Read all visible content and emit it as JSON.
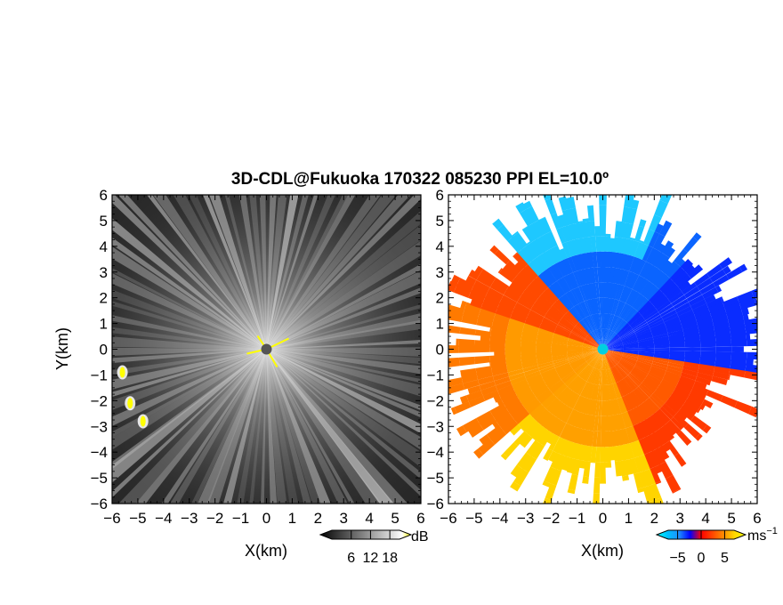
{
  "figure": {
    "title": "3D-CDL@Fukuoka 170322 085230 PPI EL=10.0º"
  },
  "chart_data": [
    {
      "type": "heatmap",
      "panel": "left",
      "variable": "intensity",
      "xlabel": "X(km)",
      "ylabel": "Y(km)",
      "xlim": [
        -6,
        6
      ],
      "ylim": [
        -6,
        6
      ],
      "x_ticks": [
        -6,
        -5,
        -4,
        -3,
        -2,
        -1,
        0,
        1,
        2,
        3,
        4,
        5,
        6
      ],
      "y_ticks": [
        -6,
        -5,
        -4,
        -3,
        -2,
        -1,
        0,
        1,
        2,
        3,
        4,
        5,
        6
      ],
      "x_tick_labels": [
        "−6",
        "−5",
        "−4",
        "−3",
        "−2",
        "−1",
        "0",
        "1",
        "2",
        "3",
        "4",
        "5",
        "6"
      ],
      "y_tick_labels": [
        "−6",
        "−5",
        "−4",
        "−3",
        "−2",
        "−1",
        "0",
        "1",
        "2",
        "3",
        "4",
        "5",
        "6"
      ],
      "colorbar": {
        "unit": "dB",
        "ticks": [
          6,
          12,
          18
        ],
        "tick_labels": [
          "6",
          "12",
          "18"
        ],
        "colors": [
          "#000000",
          "#1f1f1f",
          "#3a3a3a",
          "#555555",
          "#707070",
          "#8c8c8c",
          "#a8a8a8",
          "#c4c4c4",
          "#e0e0e0",
          "#ffffff",
          "#ffff00"
        ]
      },
      "features": [
        {
          "label": "radar site",
          "x": 0,
          "y": 0
        },
        {
          "label": "strong echo",
          "x": -5.6,
          "y": -0.9
        },
        {
          "label": "strong echo",
          "x": -5.3,
          "y": -2.1
        },
        {
          "label": "strong echo",
          "x": -4.8,
          "y": -2.8
        }
      ]
    },
    {
      "type": "heatmap",
      "panel": "right",
      "variable": "radial velocity",
      "xlabel": "X(km)",
      "xlim": [
        -6,
        6
      ],
      "ylim": [
        -6,
        6
      ],
      "x_ticks": [
        -6,
        -5,
        -4,
        -3,
        -2,
        -1,
        0,
        1,
        2,
        3,
        4,
        5,
        6
      ],
      "y_ticks": [
        -6,
        -5,
        -4,
        -3,
        -2,
        -1,
        0,
        1,
        2,
        3,
        4,
        5,
        6
      ],
      "x_tick_labels": [
        "−6",
        "−5",
        "−4",
        "−3",
        "−2",
        "−1",
        "0",
        "1",
        "2",
        "3",
        "4",
        "5",
        "6"
      ],
      "y_tick_labels": [
        "−6",
        "−5",
        "−4",
        "−3",
        "−2",
        "−1",
        "0",
        "1",
        "2",
        "3",
        "4",
        "5",
        "6"
      ],
      "colorbar": {
        "unit": "ms",
        "unit_exponent": "−1",
        "ticks": [
          -5,
          0,
          5
        ],
        "tick_labels": [
          "−5",
          "0",
          "5"
        ],
        "colors": [
          "#00ffff",
          "#00bfff",
          "#1e90ff",
          "#0000ff",
          "#ff0000",
          "#ff4500",
          "#ff8c00",
          "#ffd700",
          "#ffff00"
        ]
      },
      "features": [
        {
          "label": "radar site",
          "x": 0,
          "y": 0
        },
        {
          "label": "approaching (negative) sector",
          "azimuth_deg_from_north": [
            -40,
            100
          ]
        },
        {
          "label": "receding (positive) sector",
          "azimuth_deg_from_north": [
            100,
            320
          ]
        }
      ]
    }
  ]
}
